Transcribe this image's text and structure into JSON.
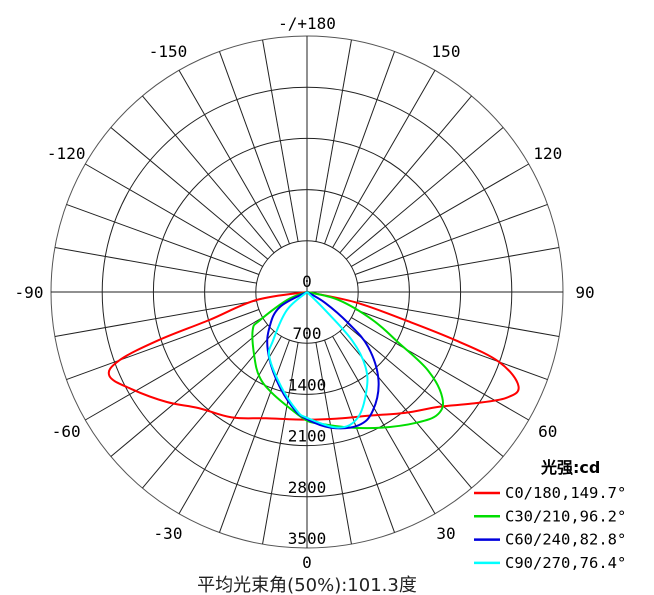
{
  "chart_data": {
    "type": "polar-line",
    "angle_zero": "bottom",
    "angle_direction": "positive to the right",
    "angle_labels": [
      {
        "angle": 0,
        "text": "0"
      },
      {
        "angle": 30,
        "text": "30"
      },
      {
        "angle": 60,
        "text": "60"
      },
      {
        "angle": 90,
        "text": "90"
      },
      {
        "angle": 120,
        "text": "120"
      },
      {
        "angle": 150,
        "text": "150"
      },
      {
        "angle": 180,
        "text": "-/+180"
      },
      {
        "angle": -150,
        "text": "-150"
      },
      {
        "angle": -120,
        "text": "-120"
      },
      {
        "angle": -90,
        "text": "-90"
      },
      {
        "angle": -60,
        "text": "-60"
      },
      {
        "angle": -30,
        "text": "-30"
      }
    ],
    "radial_ticks": [
      "0",
      "700",
      "1400",
      "2100",
      "2800",
      "3500"
    ],
    "radial_range": [
      0,
      3500
    ],
    "grid": true,
    "legend_title": "光强:cd",
    "legend_position": "bottom-right",
    "caption": "平均光束角(50%):101.3度",
    "series": [
      {
        "name": "C0/180,149.7°",
        "color": "#ff0000",
        "points": [
          [
            -90,
            0
          ],
          [
            -81,
            700
          ],
          [
            -74,
            1390
          ],
          [
            -72,
            2130
          ],
          [
            -70,
            2730
          ],
          [
            -67,
            2935
          ],
          [
            -61,
            2740
          ],
          [
            -52,
            2440
          ],
          [
            -43,
            2170
          ],
          [
            -31,
            2000
          ],
          [
            -18,
            1815
          ],
          [
            0,
            1745
          ],
          [
            14,
            1782
          ],
          [
            28,
            1910
          ],
          [
            39,
            2127
          ],
          [
            49,
            2393
          ],
          [
            56,
            2726
          ],
          [
            62,
            3083
          ],
          [
            66,
            3166
          ],
          [
            70,
            2792
          ],
          [
            72,
            2137
          ],
          [
            74,
            1400
          ],
          [
            78,
            673
          ],
          [
            90,
            0
          ]
        ]
      },
      {
        "name": "C30/210,96.2°",
        "color": "#00dd00",
        "points": [
          [
            -90,
            0
          ],
          [
            -68,
            296
          ],
          [
            -59,
            751
          ],
          [
            -55,
            907
          ],
          [
            -39,
            1143
          ],
          [
            -29,
            1334
          ],
          [
            -19,
            1463
          ],
          [
            -7,
            1631
          ],
          [
            0,
            1760
          ],
          [
            5,
            1804
          ],
          [
            17,
            1937
          ],
          [
            29,
            2120
          ],
          [
            40,
            2333
          ],
          [
            47,
            2449
          ],
          [
            52,
            2348
          ],
          [
            57,
            1976
          ],
          [
            61,
            1432
          ],
          [
            67,
            971
          ],
          [
            76,
            440
          ],
          [
            90,
            0
          ]
        ]
      },
      {
        "name": "C60/240,82.8°",
        "color": "#0000dd",
        "points": [
          [
            -90,
            0
          ],
          [
            -61,
            424
          ],
          [
            -47,
            700
          ],
          [
            -34,
            959
          ],
          [
            -19,
            1276
          ],
          [
            -7,
            1591
          ],
          [
            0,
            1740
          ],
          [
            10,
            1884
          ],
          [
            21,
            1953
          ],
          [
            29,
            1856
          ],
          [
            39,
            1553
          ],
          [
            48,
            1128
          ],
          [
            53,
            705
          ],
          [
            59,
            290
          ],
          [
            90,
            0
          ]
        ]
      },
      {
        "name": "C90/270,76.4°",
        "color": "#00ffff",
        "points": [
          [
            -90,
            0
          ],
          [
            -48,
            370
          ],
          [
            -35,
            808
          ],
          [
            -30,
            1027
          ],
          [
            -15,
            1349
          ],
          [
            -5,
            1624
          ],
          [
            0,
            1720
          ],
          [
            13,
            1903
          ],
          [
            22,
            1853
          ],
          [
            31,
            1578
          ],
          [
            38,
            1300
          ],
          [
            43,
            904
          ],
          [
            45,
            350
          ],
          [
            90,
            0
          ]
        ]
      }
    ]
  }
}
